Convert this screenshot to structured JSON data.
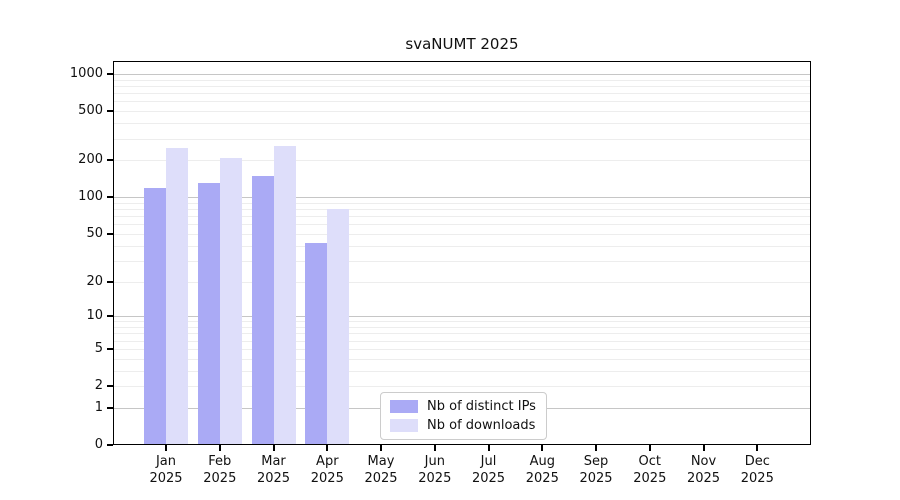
{
  "chart_data": {
    "type": "bar",
    "title": "svaNUMT 2025",
    "scale": "log1p",
    "ylim": [
      0,
      1200
    ],
    "grid": "on",
    "legend_position": "lower-center-inside",
    "categories": [
      "Jan",
      "Feb",
      "Mar",
      "Apr",
      "May",
      "Jun",
      "Jul",
      "Aug",
      "Sep",
      "Oct",
      "Nov",
      "Dec"
    ],
    "x_tick_year": "2025",
    "y_ticks": [
      0,
      1,
      2,
      5,
      10,
      20,
      50,
      100,
      200,
      500,
      1000
    ],
    "series": [
      {
        "name": "Nb of distinct IPs",
        "color": "#aaaaf5",
        "values": [
          120,
          130,
          150,
          42,
          0,
          0,
          0,
          0,
          0,
          0,
          0,
          0
        ]
      },
      {
        "name": "Nb of downloads",
        "color": "#dedefa",
        "values": [
          250,
          210,
          260,
          80,
          0,
          0,
          0,
          0,
          0,
          0,
          0,
          0
        ]
      }
    ],
    "colors": {
      "grid_major": "#c6c6c6",
      "grid_minor": "#ededed",
      "axis": "#000000",
      "text": "#111111"
    }
  }
}
